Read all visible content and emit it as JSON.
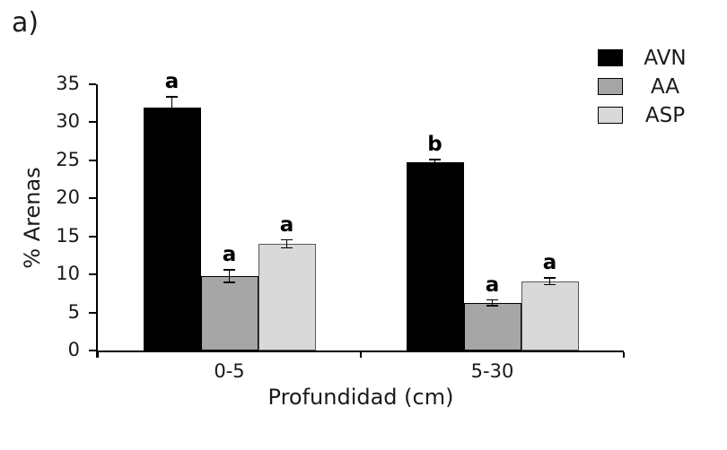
{
  "figure": {
    "panel_label": "a)"
  },
  "chart_data": {
    "type": "bar",
    "title": "",
    "xlabel": "Profundidad (cm)",
    "ylabel": "% Arenas",
    "ylim": [
      0,
      35
    ],
    "ytick_step": 5,
    "yticks": [
      0,
      5,
      10,
      15,
      20,
      25,
      30,
      35
    ],
    "categories": [
      "0-5",
      "5-30"
    ],
    "series": [
      {
        "name": "AVN",
        "color": "#000000",
        "border_color": "#000000",
        "values": [
          31.9,
          24.8
        ],
        "errors": [
          1.4,
          0.3
        ],
        "letters": [
          "a",
          "b"
        ]
      },
      {
        "name": "AA",
        "color": "#a6a6a6",
        "border_color": "#000000",
        "values": [
          9.8,
          6.3
        ],
        "errors": [
          0.8,
          0.35
        ],
        "letters": [
          "a",
          "a"
        ]
      },
      {
        "name": "ASP",
        "color": "#d9d9d9",
        "border_color": "#595959",
        "values": [
          14.0,
          9.1
        ],
        "errors": [
          0.5,
          0.4
        ],
        "letters": [
          "a",
          "a"
        ]
      }
    ],
    "grid": false,
    "legend_position": "top-right",
    "axis_color": "#000000",
    "error_bar_color": "#000000"
  }
}
